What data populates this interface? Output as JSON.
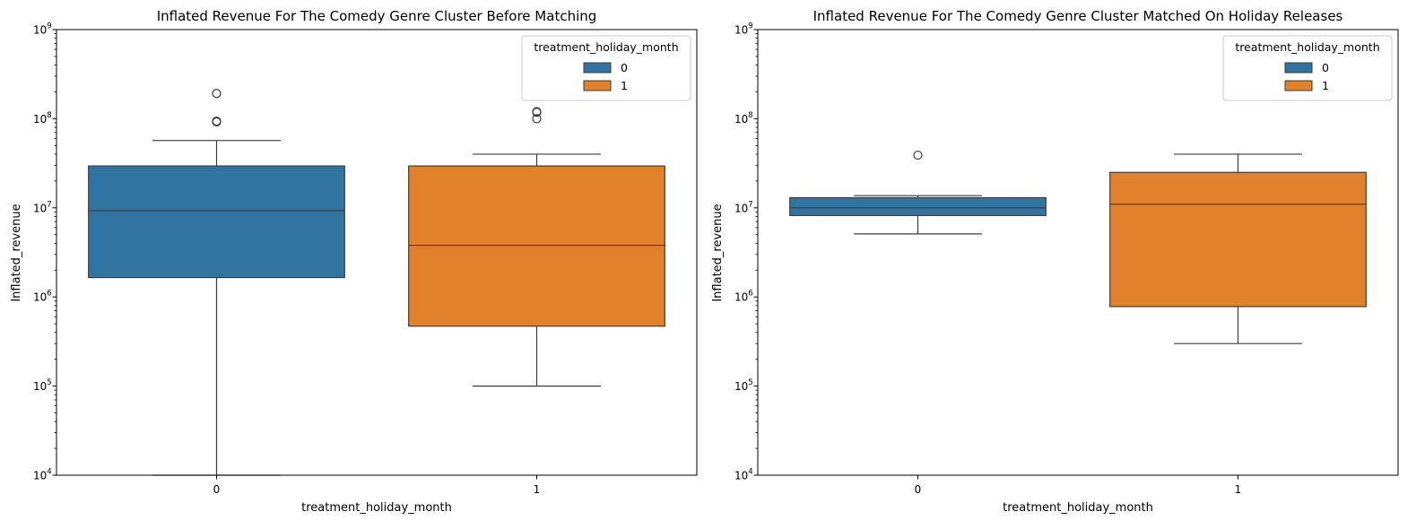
{
  "colors": {
    "group_0": "#3274a1",
    "group_1": "#e1812c",
    "box_edge": "#3d3d3d",
    "axis": "#000000"
  },
  "chart_data": [
    {
      "type": "box",
      "title": "Inflated Revenue For The Comedy Genre Cluster Before Matching",
      "xlabel": "treatment_holiday_month",
      "ylabel": "Inflated_revenue",
      "yscale": "log",
      "ylim": [
        10000,
        1000000000
      ],
      "yticks": [
        {
          "value": 10000,
          "base": "10",
          "exp": "4"
        },
        {
          "value": 100000,
          "base": "10",
          "exp": "5"
        },
        {
          "value": 1000000,
          "base": "10",
          "exp": "6"
        },
        {
          "value": 10000000,
          "base": "10",
          "exp": "7"
        },
        {
          "value": 100000000,
          "base": "10",
          "exp": "8"
        },
        {
          "value": 1000000000,
          "base": "10",
          "exp": "9"
        }
      ],
      "categories": [
        "0",
        "1"
      ],
      "legend": {
        "title": "treatment_holiday_month",
        "entries": [
          "0",
          "1"
        ],
        "position": "upper right"
      },
      "series": [
        {
          "category": "0",
          "whisker_low": 10000,
          "q1": 1650000,
          "median": 9300000,
          "q3": 29500000,
          "whisker_high": 57000000,
          "outliers": [
            192000000,
            92000000,
            94000000
          ]
        },
        {
          "category": "1",
          "whisker_low": 100000,
          "q1": 470000,
          "median": 3800000,
          "q3": 29500000,
          "whisker_high": 40000000,
          "outliers": [
            118000000,
            120000000,
            100000000
          ]
        }
      ]
    },
    {
      "type": "box",
      "title": "Inflated Revenue For The Comedy Genre Cluster Matched On Holiday Releases",
      "xlabel": "treatment_holiday_month",
      "ylabel": "Inflated_revenue",
      "yscale": "log",
      "ylim": [
        10000,
        1000000000
      ],
      "yticks": [
        {
          "value": 10000,
          "base": "10",
          "exp": "4"
        },
        {
          "value": 100000,
          "base": "10",
          "exp": "5"
        },
        {
          "value": 1000000,
          "base": "10",
          "exp": "6"
        },
        {
          "value": 10000000,
          "base": "10",
          "exp": "7"
        },
        {
          "value": 100000000,
          "base": "10",
          "exp": "8"
        },
        {
          "value": 1000000000,
          "base": "10",
          "exp": "9"
        }
      ],
      "categories": [
        "0",
        "1"
      ],
      "legend": {
        "title": "treatment_holiday_month",
        "entries": [
          "0",
          "1"
        ],
        "position": "upper right"
      },
      "series": [
        {
          "category": "0",
          "whisker_low": 5100000,
          "q1": 8200000,
          "median": 10000000,
          "q3": 13000000,
          "whisker_high": 13700000,
          "outliers": [
            39000000
          ]
        },
        {
          "category": "1",
          "whisker_low": 300000,
          "q1": 780000,
          "median": 11000000,
          "q3": 25000000,
          "whisker_high": 40000000,
          "outliers": []
        }
      ]
    }
  ]
}
